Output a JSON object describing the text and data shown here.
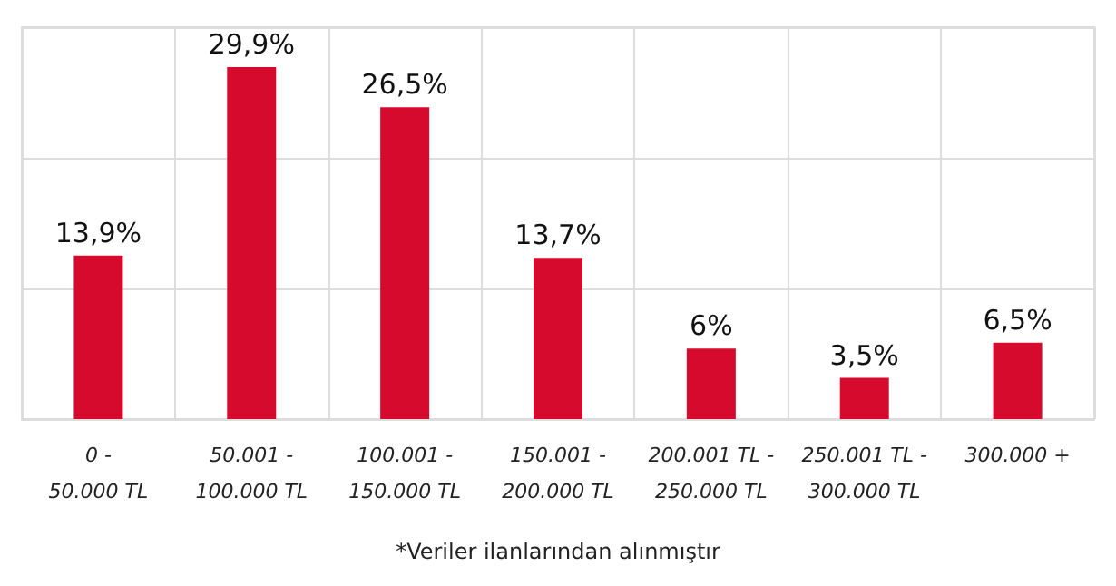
{
  "chart_data": {
    "type": "bar",
    "categories": [
      "0 -\n50.000 TL",
      "50.001 -\n100.000 TL",
      "100.001 -\n150.000 TL",
      "150.001 -\n200.000 TL",
      "200.001 TL -\n250.000 TL",
      "250.001 TL -\n300.000 TL",
      "300.000 +"
    ],
    "values": [
      13.9,
      29.9,
      26.5,
      13.7,
      6,
      3.5,
      6.5
    ],
    "value_labels": [
      "13,9%",
      "29,9%",
      "26,5%",
      "13,7%",
      "6%",
      "3,5%",
      "6,5%"
    ],
    "color": "#d50a2c",
    "ylim": [
      0,
      33.3
    ],
    "yticks": [
      {
        "value": 0,
        "label": null
      },
      {
        "value": 11.1,
        "label": null
      },
      {
        "value": 22.2,
        "label": null
      },
      {
        "value": 33.3,
        "label": null
      }
    ],
    "tick_labels": "x",
    "grid": true,
    "annotations": [
      "*Veriler ilanlarından alınmıştır"
    ]
  }
}
